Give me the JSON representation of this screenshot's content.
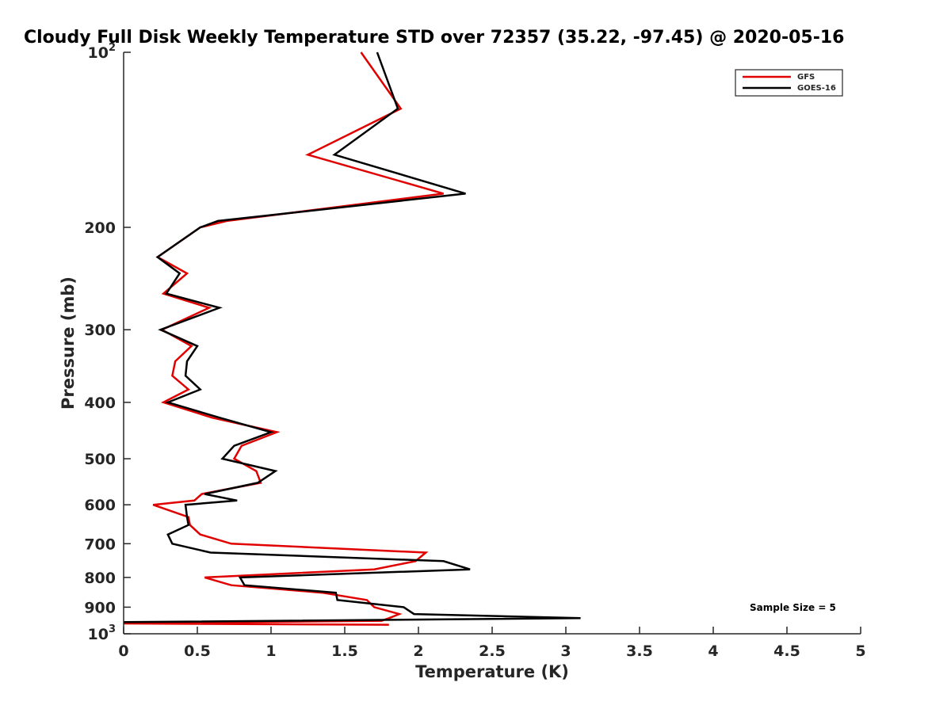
{
  "chart_data": {
    "type": "line",
    "title": "Cloudy Full Disk Weekly Temperature STD over 72357 (35.22, -97.45) @ 2020-05-16",
    "xlabel": "Temperature (K)",
    "ylabel": "Pressure (mb)",
    "xlim": [
      0,
      5
    ],
    "ylim": [
      100,
      1000
    ],
    "y_scale": "log",
    "y_reversed": true,
    "x_ticks": [
      "0",
      "0.5",
      "1",
      "1.5",
      "2",
      "2.5",
      "3",
      "3.5",
      "4",
      "4.5",
      "5"
    ],
    "x_tick_values": [
      0,
      0.5,
      1,
      1.5,
      2,
      2.5,
      3,
      3.5,
      4,
      4.5,
      5
    ],
    "y_ticks": [
      {
        "value": 100,
        "base": "10",
        "exp": "2"
      },
      {
        "value": 200,
        "label": "200"
      },
      {
        "value": 300,
        "label": "300"
      },
      {
        "value": 400,
        "label": "400"
      },
      {
        "value": 500,
        "label": "500"
      },
      {
        "value": 600,
        "label": "600"
      },
      {
        "value": 700,
        "label": "700"
      },
      {
        "value": 800,
        "label": "800"
      },
      {
        "value": 900,
        "label": "900"
      },
      {
        "value": 1000,
        "base": "10",
        "exp": "3"
      }
    ],
    "grid": false,
    "legend_position": "top-right",
    "annotation": "Sample Size = 5",
    "series": [
      {
        "name": "GFS",
        "color": "#e00000",
        "points": [
          [
            1.61,
            100
          ],
          [
            1.88,
            125
          ],
          [
            1.25,
            150
          ],
          [
            2.17,
            175
          ],
          [
            0.7,
            195
          ],
          [
            0.52,
            200
          ],
          [
            0.23,
            225
          ],
          [
            0.43,
            240
          ],
          [
            0.27,
            260
          ],
          [
            0.58,
            275
          ],
          [
            0.26,
            300
          ],
          [
            0.46,
            320
          ],
          [
            0.35,
            340
          ],
          [
            0.33,
            360
          ],
          [
            0.44,
            380
          ],
          [
            0.27,
            400
          ],
          [
            0.6,
            425
          ],
          [
            1.04,
            450
          ],
          [
            0.8,
            475
          ],
          [
            0.75,
            500
          ],
          [
            0.9,
            525
          ],
          [
            0.93,
            550
          ],
          [
            0.53,
            575
          ],
          [
            0.48,
            590
          ],
          [
            0.2,
            600
          ],
          [
            0.44,
            630
          ],
          [
            0.45,
            650
          ],
          [
            0.52,
            675
          ],
          [
            0.73,
            700
          ],
          [
            2.05,
            725
          ],
          [
            1.98,
            750
          ],
          [
            1.7,
            775
          ],
          [
            0.55,
            800
          ],
          [
            0.73,
            825
          ],
          [
            1.35,
            850
          ],
          [
            1.65,
            875
          ],
          [
            1.7,
            900
          ],
          [
            1.87,
            925
          ],
          [
            1.8,
            940
          ],
          [
            1.75,
            950
          ],
          [
            0.0,
            960
          ],
          [
            1.8,
            965
          ]
        ]
      },
      {
        "name": "GOES-16",
        "color": "#000000",
        "points": [
          [
            1.72,
            100
          ],
          [
            1.86,
            125
          ],
          [
            1.43,
            150
          ],
          [
            2.32,
            175
          ],
          [
            0.64,
            195
          ],
          [
            0.52,
            200
          ],
          [
            0.23,
            225
          ],
          [
            0.38,
            240
          ],
          [
            0.29,
            260
          ],
          [
            0.65,
            275
          ],
          [
            0.25,
            300
          ],
          [
            0.5,
            320
          ],
          [
            0.43,
            340
          ],
          [
            0.42,
            360
          ],
          [
            0.52,
            380
          ],
          [
            0.3,
            400
          ],
          [
            0.65,
            425
          ],
          [
            1.0,
            450
          ],
          [
            0.75,
            475
          ],
          [
            0.67,
            500
          ],
          [
            1.03,
            525
          ],
          [
            0.91,
            550
          ],
          [
            0.55,
            575
          ],
          [
            0.77,
            590
          ],
          [
            0.42,
            600
          ],
          [
            0.43,
            630
          ],
          [
            0.44,
            650
          ],
          [
            0.3,
            675
          ],
          [
            0.33,
            700
          ],
          [
            0.59,
            725
          ],
          [
            2.17,
            750
          ],
          [
            2.35,
            775
          ],
          [
            0.79,
            800
          ],
          [
            0.82,
            825
          ],
          [
            1.44,
            850
          ],
          [
            1.45,
            875
          ],
          [
            1.9,
            900
          ],
          [
            1.97,
            925
          ],
          [
            3.1,
            940
          ],
          [
            0.0,
            955
          ]
        ]
      }
    ]
  }
}
